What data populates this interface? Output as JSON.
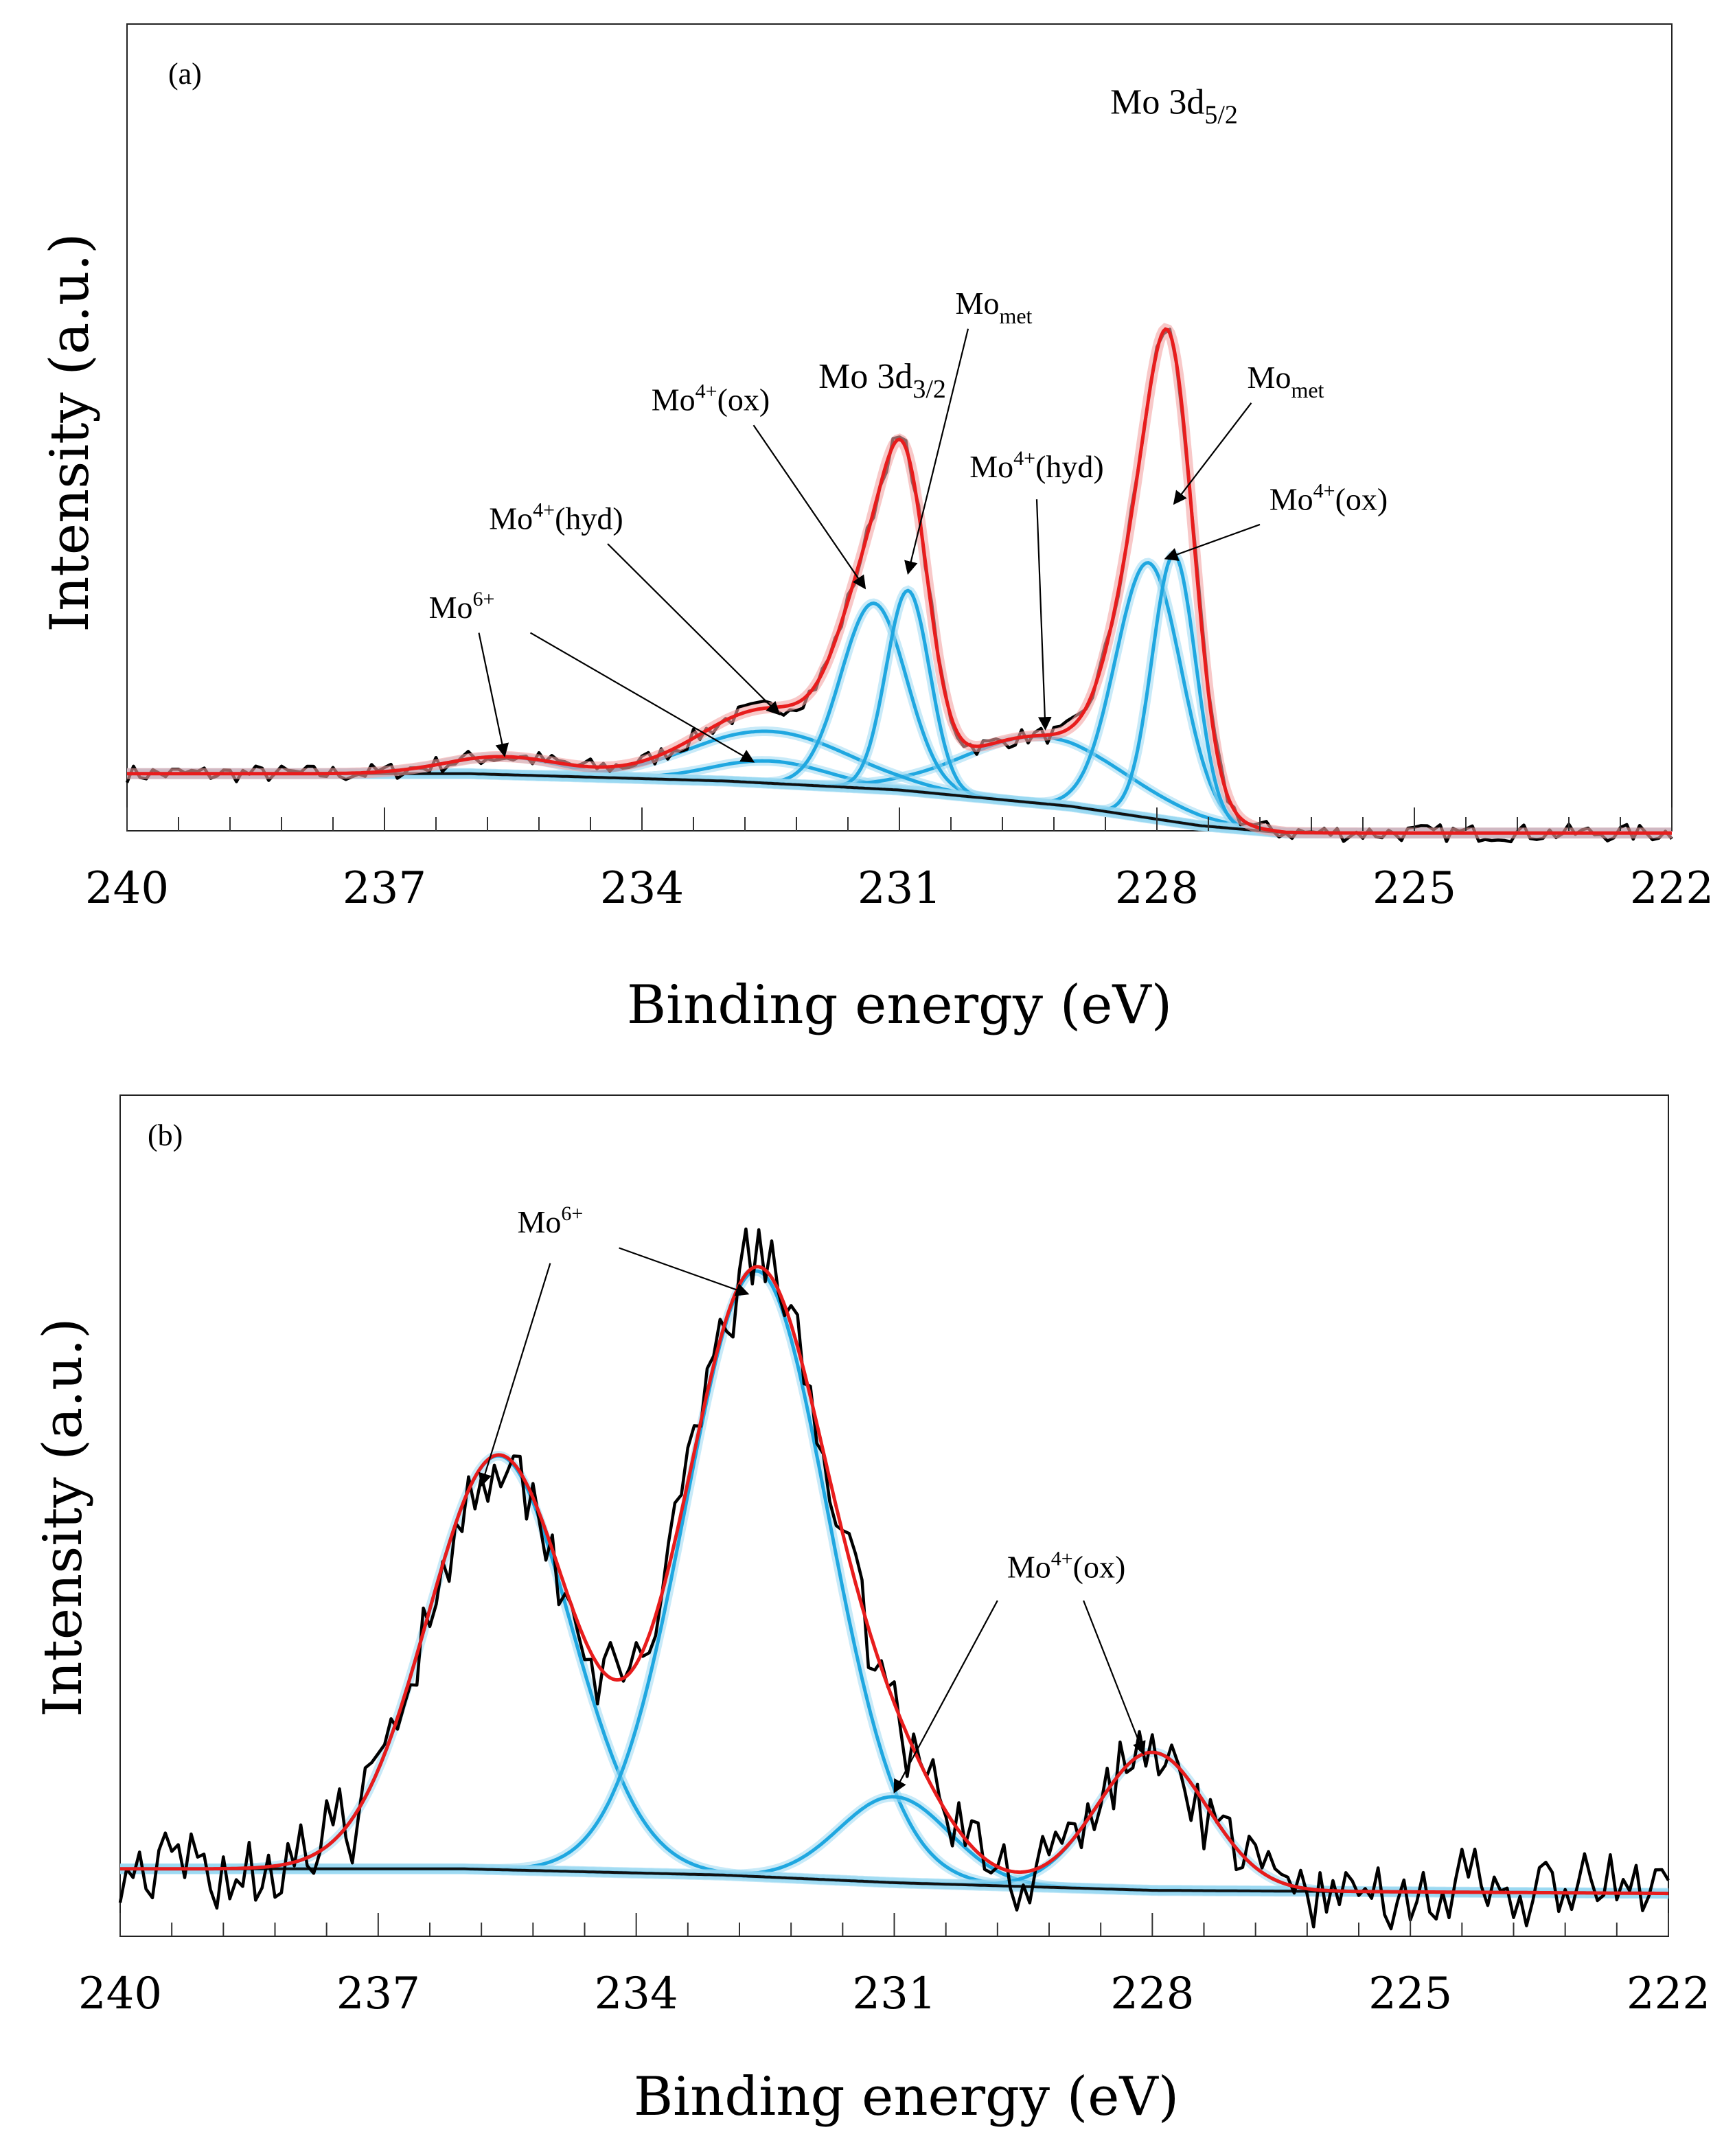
{
  "chart_data": [
    {
      "type": "line",
      "panel_label": "(a)",
      "xlabel": "Binding energy (eV)",
      "ylabel": "Intensity (a.u.)",
      "xlim": [
        240,
        222
      ],
      "x_direction": "reversed",
      "xticks": [
        240,
        237,
        234,
        231,
        228,
        225,
        222
      ],
      "ylim": [
        -0.2,
        4.8
      ],
      "background": [
        {
          "x": 240.0,
          "y": 0.0
        },
        {
          "x": 236.0,
          "y": 0.0
        },
        {
          "x": 233.0,
          "y": -0.05
        },
        {
          "x": 231.0,
          "y": -0.11
        },
        {
          "x": 229.0,
          "y": -0.22
        },
        {
          "x": 227.5,
          "y": -0.35
        },
        {
          "x": 226.5,
          "y": -0.4
        },
        {
          "x": 222.0,
          "y": -0.4
        }
      ],
      "components": [
        {
          "name": "Mo6+ 3d5/2",
          "center": 232.5,
          "height": 0.15,
          "fwhm": 1.6
        },
        {
          "name": "Mo6+ 3d3/2",
          "center": 235.6,
          "height": 0.12,
          "fwhm": 1.6
        },
        {
          "name": "Mo4+(hyd) 3d5/2",
          "center": 229.3,
          "height": 0.45,
          "fwhm": 2.2
        },
        {
          "name": "Mo4+(hyd) 3d3/2",
          "center": 232.5,
          "height": 0.35,
          "fwhm": 2.2
        },
        {
          "name": "Mo4+(ox) 3d5/2",
          "center": 228.1,
          "height": 1.72,
          "fwhm": 0.9
        },
        {
          "name": "Mo4+(ox) 3d3/2",
          "center": 231.3,
          "height": 1.25,
          "fwhm": 0.9
        },
        {
          "name": "Mo_met 3d5/2",
          "center": 227.8,
          "height": 1.8,
          "fwhm": 0.6
        },
        {
          "name": "Mo_met 3d3/2",
          "center": 230.9,
          "height": 1.35,
          "fwhm": 0.6
        }
      ],
      "noise_amplitude": 0.06,
      "annotations": [
        {
          "text": "Mo 3d",
          "sub": "5/2",
          "sup": "",
          "x": 227.8,
          "y": 4.45,
          "size": "big"
        },
        {
          "text": "Mo 3d",
          "sub": "3/2",
          "sup": "",
          "x": 231.2,
          "y": 2.6,
          "size": "big"
        },
        {
          "text": "Mo",
          "sub": "met",
          "sup": "",
          "x": 229.9,
          "y": 3.1,
          "arrow_from": [
            230.2,
            3.0
          ],
          "arrow_to": [
            230.9,
            1.35
          ]
        },
        {
          "text": "Mo",
          "sub": "met",
          "sup": "",
          "x": 226.5,
          "y": 2.6,
          "arrow_from": [
            226.9,
            2.5
          ],
          "arrow_to": [
            227.8,
            1.82
          ]
        },
        {
          "text": "Mo",
          "sub": "",
          "sup": "4+",
          "tail": "(ox)",
          "x": 233.2,
          "y": 2.45,
          "arrow_from": [
            232.7,
            2.35
          ],
          "arrow_to": [
            231.4,
            1.25
          ]
        },
        {
          "text": "Mo",
          "sub": "",
          "sup": "4+",
          "tail": "(ox)",
          "x": 226.0,
          "y": 1.78,
          "arrow_from": [
            226.8,
            1.68
          ],
          "arrow_to": [
            227.9,
            1.45
          ]
        },
        {
          "text": "Mo",
          "sub": "",
          "sup": "4+",
          "tail": "(hyd)",
          "x": 229.4,
          "y": 2.0,
          "arrow_from": [
            229.4,
            1.85
          ],
          "arrow_to": [
            229.3,
            0.3
          ]
        },
        {
          "text": "Mo",
          "sub": "",
          "sup": "4+",
          "tail": "(hyd)",
          "x": 235.0,
          "y": 1.65,
          "arrow_from": [
            234.4,
            1.55
          ],
          "arrow_to": [
            232.4,
            0.4
          ]
        },
        {
          "text": "Mo",
          "sub": "",
          "sup": "6+",
          "x": 236.1,
          "y": 1.05,
          "arrow_from": [
            235.9,
            0.95
          ],
          "arrow_to": [
            235.6,
            0.12
          ],
          "arrow2_from": [
            235.3,
            0.95
          ],
          "arrow2_to": [
            232.7,
            0.08
          ]
        }
      ]
    },
    {
      "type": "line",
      "panel_label": "(b)",
      "xlabel": "Binding energy (eV)",
      "ylabel": "Intensity (a.u.)",
      "xlim": [
        240,
        222
      ],
      "x_direction": "reversed",
      "xticks": [
        240,
        237,
        234,
        231,
        228,
        225,
        222
      ],
      "ylim": [
        -0.35,
        4.8
      ],
      "background": [
        {
          "x": 240.0,
          "y": 0.0
        },
        {
          "x": 236.0,
          "y": 0.0
        },
        {
          "x": 233.0,
          "y": -0.04
        },
        {
          "x": 231.0,
          "y": -0.09
        },
        {
          "x": 228.0,
          "y": -0.14
        },
        {
          "x": 222.0,
          "y": -0.16
        }
      ],
      "components": [
        {
          "name": "Mo6+ 3d3/2",
          "center": 235.6,
          "height": 2.7,
          "fwhm": 1.95
        },
        {
          "name": "Mo6+ 3d5/2",
          "center": 232.6,
          "height": 3.95,
          "fwhm": 1.95
        },
        {
          "name": "Mo4+(ox) 3d3/2",
          "center": 231.0,
          "height": 0.56,
          "fwhm": 1.5
        },
        {
          "name": "Mo4+(ox) 3d5/2",
          "center": 228.0,
          "height": 0.9,
          "fwhm": 1.5
        }
      ],
      "noise_amplitude": 0.22,
      "annotations": [
        {
          "text": "Mo",
          "sub": "",
          "sup": "6+",
          "x": 235.0,
          "y": 4.15,
          "arrow_from": [
            235.0,
            3.95
          ],
          "arrow_to": [
            235.8,
            2.5
          ],
          "arrow2_from": [
            234.2,
            4.05
          ],
          "arrow2_to": [
            232.7,
            3.75
          ]
        },
        {
          "text": "Mo",
          "sub": "",
          "sup": "4+",
          "tail": "(ox)",
          "x": 229.0,
          "y": 1.9,
          "arrow_from": [
            229.8,
            1.75
          ],
          "arrow_to": [
            231.0,
            0.5
          ],
          "arrow2_from": [
            228.8,
            1.75
          ],
          "arrow2_to": [
            228.1,
            0.75
          ]
        }
      ]
    }
  ]
}
